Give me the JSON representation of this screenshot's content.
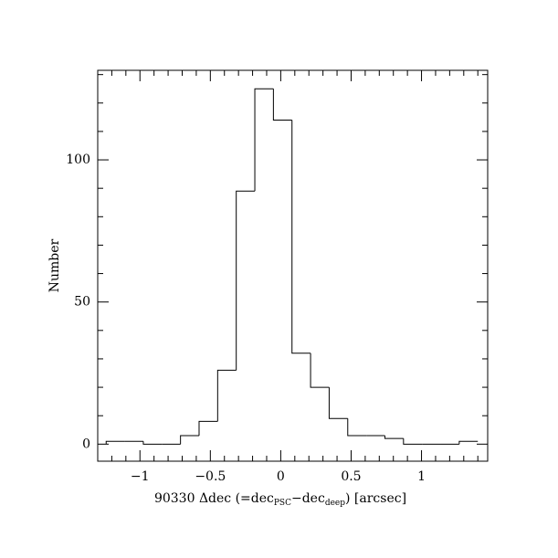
{
  "chart_data": {
    "type": "histogram",
    "xlabel": [
      "90330 Δdec (=dec",
      "PSC",
      "−dec",
      "deep",
      ") [arcsec]"
    ],
    "ylabel": "Number",
    "bins": [
      -1.24,
      -1.108,
      -0.976,
      -0.844,
      -0.712,
      -0.58,
      -0.448,
      -0.316,
      -0.184,
      -0.052,
      0.08,
      0.212,
      0.344,
      0.476,
      0.608,
      0.74,
      0.872,
      1.004,
      1.136,
      1.268,
      1.4
    ],
    "values": [
      1,
      1,
      0,
      0,
      3,
      8,
      26,
      89,
      125,
      114,
      32,
      20,
      9,
      3,
      3,
      2,
      0,
      0,
      0,
      1
    ],
    "color": "#000000",
    "xlim": [
      -1.3,
      1.47
    ],
    "ylim": [
      -6,
      131.5
    ],
    "xticks": [
      {
        "value": -1,
        "label": "−1"
      },
      {
        "value": -0.5,
        "label": "−0.5"
      },
      0,
      0.5,
      1
    ],
    "yticks": [
      0,
      50,
      100
    ],
    "xminor": [
      -1.2,
      -1.1,
      -0.9,
      -0.8,
      -0.7,
      -0.6,
      -0.4,
      -0.3,
      -0.2,
      -0.1,
      0.1,
      0.2,
      0.3,
      0.4,
      0.6,
      0.7,
      0.8,
      0.9,
      1.1,
      1.2,
      1.3,
      1.4
    ],
    "yminor": [
      10,
      20,
      30,
      40,
      60,
      70,
      80,
      90,
      110,
      120,
      130
    ]
  }
}
